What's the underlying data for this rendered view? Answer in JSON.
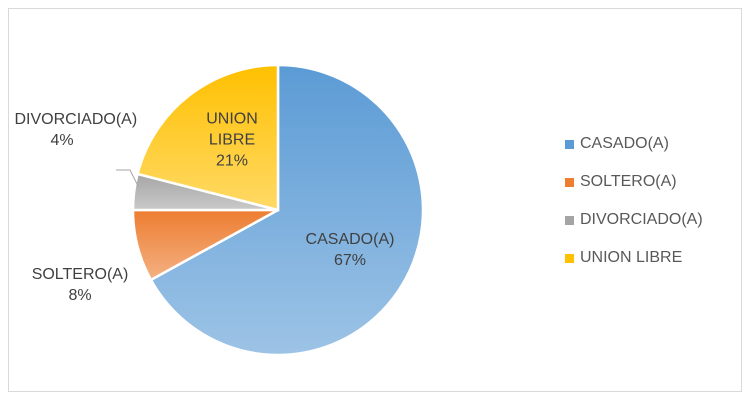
{
  "chart_data": {
    "type": "pie",
    "categories": [
      "CASADO(A)",
      "SOLTERO(A)",
      "DIVORCIADO(A)",
      "UNION LIBRE"
    ],
    "values": [
      67,
      8,
      4,
      21
    ],
    "value_labels": [
      "67%",
      "8%",
      "4%",
      "21%"
    ],
    "colors": [
      "#5b9bd5",
      "#ed7d31",
      "#a5a5a5",
      "#ffc000"
    ],
    "legend": "right"
  }
}
